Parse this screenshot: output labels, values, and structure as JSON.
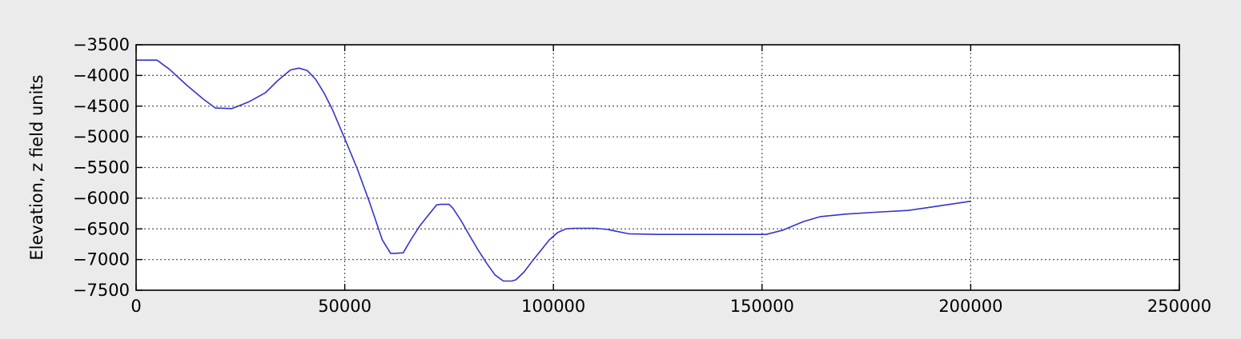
{
  "chart_data": {
    "type": "line",
    "title": "",
    "xlabel": "",
    "ylabel": "Elevation, z field units",
    "xlim": [
      0,
      250000
    ],
    "ylim": [
      -7500,
      -3500
    ],
    "grid": true,
    "grid_style": "dotted",
    "x_ticks": [
      0,
      50000,
      100000,
      150000,
      200000,
      250000
    ],
    "x_tick_labels": [
      "0",
      "50000",
      "100000",
      "150000",
      "200000",
      "250000"
    ],
    "y_ticks": [
      -3500,
      -4000,
      -4500,
      -5000,
      -5500,
      -6000,
      -6500,
      -7000,
      -7500
    ],
    "y_tick_labels": [
      "−3500",
      "−4000",
      "−4500",
      "−5000",
      "−5500",
      "−6000",
      "−6500",
      "−7000",
      "−7500"
    ],
    "colors": {
      "line": "#3333cc",
      "plot_background": "#ffffff",
      "figure_background": "#ebebeb",
      "grid": "#555555"
    },
    "series": [
      {
        "x": [
          0,
          5000,
          8000,
          12000,
          16000,
          19000,
          23000,
          27000,
          31000,
          34000,
          37000,
          39000,
          41000,
          43000,
          45000,
          47000,
          50000,
          53000,
          56000,
          59000,
          61000,
          62000,
          64000,
          66000,
          68000,
          70000,
          72000,
          73000,
          75000,
          76000,
          78000,
          80000,
          82000,
          84000,
          86000,
          88000,
          90000,
          91000,
          93000,
          95000,
          97000,
          99000,
          101000,
          103000,
          105000,
          110000,
          113000,
          118000,
          125000,
          135000,
          145000,
          151000,
          155000,
          160000,
          164000,
          170000,
          177000,
          185000,
          190000,
          195000,
          200000
        ],
        "y": [
          -3750,
          -3750,
          -3900,
          -4150,
          -4380,
          -4530,
          -4540,
          -4430,
          -4280,
          -4080,
          -3910,
          -3880,
          -3920,
          -4060,
          -4280,
          -4550,
          -5030,
          -5520,
          -6080,
          -6680,
          -6900,
          -6900,
          -6890,
          -6660,
          -6450,
          -6280,
          -6110,
          -6100,
          -6100,
          -6170,
          -6380,
          -6620,
          -6850,
          -7060,
          -7250,
          -7350,
          -7350,
          -7330,
          -7200,
          -7020,
          -6850,
          -6680,
          -6560,
          -6500,
          -6490,
          -6490,
          -6510,
          -6580,
          -6590,
          -6590,
          -6590,
          -6590,
          -6520,
          -6380,
          -6300,
          -6260,
          -6230,
          -6200,
          -6150,
          -6100,
          -6050
        ]
      }
    ]
  }
}
